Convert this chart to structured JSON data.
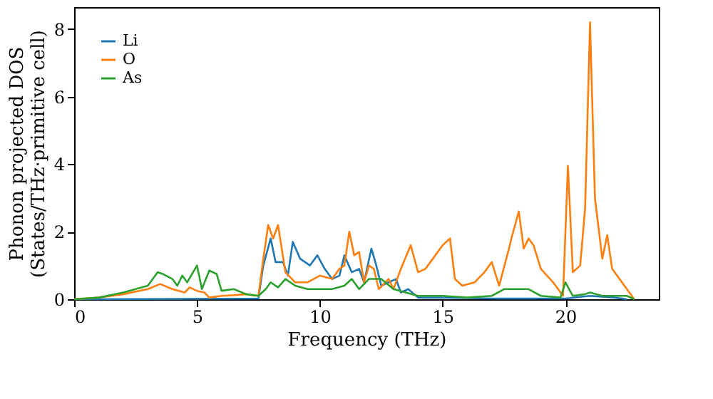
{
  "chart_data": {
    "type": "line",
    "xlabel": "Frequency (THz)",
    "ylabel": "Phonon projected DOS\n(States/THz·primitive cell)",
    "xlim": [
      0,
      23.8
    ],
    "ylim": [
      0,
      8.65
    ],
    "xticks": [
      0,
      5,
      10,
      15,
      20
    ],
    "yticks": [
      0,
      2,
      4,
      6,
      8
    ],
    "grid": false,
    "legend": "top left",
    "line_style": "solid",
    "marker": "none",
    "series": [
      {
        "name": "Li",
        "color": "#1f77b4",
        "x": [
          0,
          7.5,
          7.7,
          8.0,
          8.2,
          8.5,
          8.7,
          8.9,
          9.2,
          9.6,
          9.9,
          10.2,
          10.5,
          10.8,
          11.0,
          11.3,
          11.6,
          11.8,
          12.1,
          12.3,
          12.5,
          12.8,
          13.1,
          13.3,
          13.6,
          14,
          15,
          17,
          20,
          21,
          22,
          22.5
        ],
        "values": [
          0,
          0.02,
          1.0,
          1.8,
          1.1,
          1.1,
          0.7,
          1.7,
          1.2,
          1.0,
          1.3,
          0.9,
          0.6,
          0.7,
          1.3,
          0.8,
          0.9,
          0.5,
          1.5,
          1.0,
          0.4,
          0.5,
          0.6,
          0.2,
          0.3,
          0.05,
          0.05,
          0.02,
          0.02,
          0.1,
          0.05,
          0
        ]
      },
      {
        "name": "O",
        "color": "#ff7f0e",
        "x": [
          0,
          1,
          2,
          3,
          3.5,
          4,
          4.5,
          4.7,
          5,
          5.3,
          5.5,
          6,
          6.5,
          7,
          7.5,
          7.7,
          7.9,
          8.1,
          8.3,
          8.6,
          9,
          9.5,
          10,
          10.5,
          10.8,
          11,
          11.2,
          11.4,
          11.6,
          11.8,
          12.0,
          12.2,
          12.4,
          12.8,
          13.0,
          13.3,
          13.7,
          14,
          14.3,
          14.6,
          15,
          15.3,
          15.5,
          15.8,
          16.3,
          16.7,
          17.0,
          17.3,
          17.7,
          17.8,
          18.1,
          18.3,
          18.5,
          18.7,
          19,
          19.5,
          19.9,
          20.1,
          20.3,
          20.6,
          20.8,
          21.0,
          21.2,
          21.5,
          21.7,
          21.9,
          22.4,
          22.8
        ],
        "values": [
          0,
          0.05,
          0.15,
          0.3,
          0.45,
          0.3,
          0.2,
          0.35,
          0.25,
          0.2,
          0.05,
          0.1,
          0.12,
          0.15,
          0.1,
          1.2,
          2.2,
          1.8,
          2.2,
          0.8,
          0.5,
          0.5,
          0.7,
          0.6,
          0.9,
          1.0,
          2.0,
          1.3,
          1.4,
          0.5,
          1.0,
          0.9,
          0.3,
          0.6,
          0.3,
          0.9,
          1.6,
          0.8,
          0.9,
          1.2,
          1.6,
          1.8,
          0.6,
          0.4,
          0.5,
          0.8,
          1.1,
          0.4,
          1.5,
          1.8,
          2.6,
          1.5,
          1.8,
          1.6,
          0.9,
          0.5,
          0.1,
          3.95,
          0.8,
          1.0,
          2.7,
          8.2,
          3.0,
          1.2,
          1.9,
          0.9,
          0.4,
          0
        ]
      },
      {
        "name": "As",
        "color": "#2ca02c",
        "x": [
          0,
          1,
          2,
          3,
          3.4,
          3.6,
          4,
          4.2,
          4.4,
          4.6,
          5,
          5.2,
          5.5,
          5.8,
          6.0,
          6.5,
          7,
          7.5,
          7.8,
          8,
          8.3,
          8.6,
          9,
          9.5,
          10,
          10.5,
          11,
          11.3,
          11.6,
          12,
          12.5,
          13,
          13.5,
          14,
          15,
          16,
          17,
          17.5,
          18,
          18.5,
          19,
          19.8,
          20.0,
          20.3,
          20.8,
          21.0,
          21.5,
          22.5,
          22.8
        ],
        "values": [
          0,
          0.05,
          0.2,
          0.4,
          0.8,
          0.75,
          0.6,
          0.4,
          0.7,
          0.5,
          1.0,
          0.3,
          0.85,
          0.75,
          0.25,
          0.3,
          0.15,
          0.1,
          0.3,
          0.5,
          0.35,
          0.6,
          0.4,
          0.3,
          0.3,
          0.3,
          0.4,
          0.6,
          0.3,
          0.6,
          0.6,
          0.3,
          0.2,
          0.1,
          0.1,
          0.05,
          0.1,
          0.3,
          0.3,
          0.3,
          0.1,
          0.05,
          0.5,
          0.1,
          0.15,
          0.2,
          0.1,
          0.1,
          0
        ]
      }
    ]
  }
}
